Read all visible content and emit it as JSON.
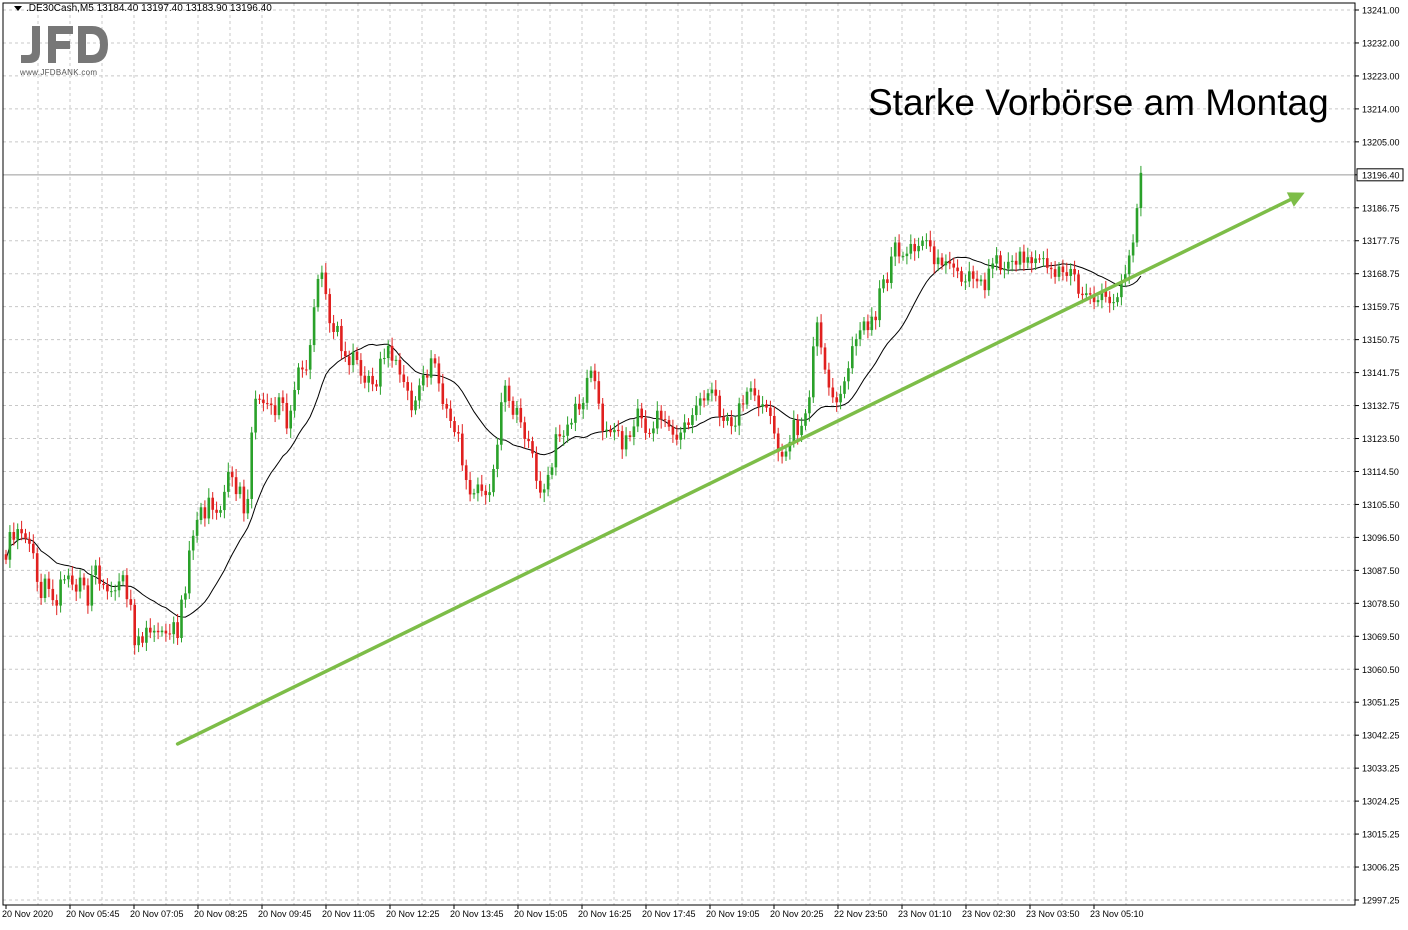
{
  "header": {
    "symbol_line": ".DE30Cash,M5  13184.40 13197.40 13183.90 13196.40"
  },
  "logo": {
    "text": "JFD",
    "subtext": "www.JFDBANK.com"
  },
  "annotation": "Starke Vorbörse am Montag",
  "colors": {
    "bull": "#2aa12a",
    "bear": "#e0201f",
    "grid": "#c8c8c8",
    "trend": "#7dbd48",
    "ma": "#000000"
  },
  "chart_data": {
    "type": "candlestick",
    "symbol": ".DE30Cash",
    "timeframe": "M5",
    "last_price": "13196.40",
    "y_ticks": [
      "13241.00",
      "13232.00",
      "13223.00",
      "13214.00",
      "13205.00",
      "13196.40",
      "13186.75",
      "13177.75",
      "13168.75",
      "13159.75",
      "13150.75",
      "13141.75",
      "13132.75",
      "13123.50",
      "13114.50",
      "13105.50",
      "13096.50",
      "13087.50",
      "13078.50",
      "13069.50",
      "13060.50",
      "13051.25",
      "13042.25",
      "13033.25",
      "13024.25",
      "13015.25",
      "13006.25",
      "12997.25"
    ],
    "x_ticks": [
      "20 Nov 2020",
      "20 Nov 05:45",
      "20 Nov 07:05",
      "20 Nov 08:25",
      "20 Nov 09:45",
      "20 Nov 11:05",
      "20 Nov 12:25",
      "20 Nov 13:45",
      "20 Nov 15:05",
      "20 Nov 16:25",
      "20 Nov 17:45",
      "20 Nov 19:05",
      "20 Nov 20:25",
      "22 Nov 23:50",
      "23 Nov 01:10",
      "23 Nov 02:30",
      "23 Nov 03:50",
      "23 Nov 05:10"
    ],
    "ylim": [
      12997.25,
      13241.0
    ],
    "grid": true,
    "trendline": {
      "from_bar": 44,
      "from_price": 13040,
      "to_bar": 333,
      "to_price": 13191
    },
    "ma_period": 20,
    "closes": [
      13090.44,
      13098.03,
      13095.92,
      13098.84,
      13097.68,
      13096.19,
      13094.81,
      13092.23,
      13084.38,
      13079.96,
      13085.27,
      13082.44,
      13079.38,
      13077.88,
      13085.02,
      13085.09,
      13086.11,
      13083.64,
      13081.73,
      13085.54,
      13083.42,
      13077.88,
      13086.24,
      13088.86,
      13083.86,
      13083.51,
      13081.78,
      13081.84,
      13082.07,
      13084.51,
      13086.22,
      13079.64,
      13078.08,
      13067.04,
      13069.44,
      13067.7,
      13071.82,
      13070.52,
      13070.98,
      13070.59,
      13071.02,
      13070.25,
      13070.05,
      13073.34,
      13069.0,
      13079.52,
      13081.23,
      13092.98,
      13096.99,
      13101.33,
      13104.81,
      13101.75,
      13107.43,
      13104.12,
      13103.29,
      13104.04,
      13109.03,
      13114.46,
      13113.05,
      13108.42,
      13110.47,
      13103.14,
      13107.09,
      13125.28,
      13134.53,
      13134.28,
      13133.33,
      13133.22,
      13132.76,
      13130.05,
      13134.92,
      13133.37,
      13126.4,
      13131.26,
      13136.93,
      13143.09,
      13142.55,
      13142.5,
      13149.23,
      13159.59,
      13167.34,
      13169.09,
      13163.2,
      13155.23,
      13152.82,
      13154.47,
      13147.58,
      13146.15,
      13143.74,
      13147.4,
      13145.13,
      13140.85,
      13138.93,
      13140.78,
      13138.5,
      13137.87,
      13145.5,
      13145.68,
      13149.01,
      13144.94,
      13145.18,
      13141.17,
      13139.11,
      13136.74,
      13131.38,
      13134.06,
      13138.19,
      13140.98,
      13140.31,
      13145.6,
      13144.21,
      13138.73,
      13133.08,
      13131.83,
      13128.44,
      13125.4,
      13124.99,
      13116.3,
      13112.28,
      13108.33,
      13108.67,
      13111.06,
      13109.31,
      13108.15,
      13108.95,
      13115.29,
      13121.94,
      13133.58,
      13138.11,
      13133.94,
      13130.13,
      13132.01,
      13128.08,
      13123.52,
      13122.93,
      13119.56,
      13112.06,
      13108.83,
      13109.72,
      13113.68,
      13115.74,
      13124.82,
      13124.24,
      13124.38,
      13127.45,
      13127.93,
      13133.16,
      13131.63,
      13133.41,
      13140.24,
      13142.24,
      13139.35,
      13133.19,
      13125.73,
      13126.06,
      13125.36,
      13126.01,
      13125.67,
      13120.66,
      13124.51,
      13124.06,
      13126.95,
      13131.84,
      13129.16,
      13125.17,
      13125.07,
      13126.4,
      13131.25,
      13128.95,
      13128.68,
      13126.89,
      13124.69,
      13123.31,
      13125.28,
      13128.04,
      13127.34,
      13130.06,
      13132.68,
      13134.64,
      13134.06,
      13136.04,
      13137.04,
      13135.35,
      13129.6,
      13128.45,
      13129.48,
      13127.03,
      13127.17,
      13133.27,
      13132.95,
      13136.46,
      13137.41,
      13135.43,
      13132.34,
      13133.02,
      13132.1,
      13129.82,
      13125.02,
      13119.98,
      13118.69,
      13120.1,
      13122.71,
      13128.73,
      13124.58,
      13127.12,
      13130.54,
      13134.93,
      13148.88,
      13155.45,
      13148.58,
      13142.5,
      13137.61,
      13134.93,
      13133.54,
      13135.87,
      13139.31,
      13142.89,
      13148.94,
      13150.83,
      13153.27,
      13155.71,
      13153.33,
      13157.0,
      13156.06,
      13164.76,
      13167.24,
      13166.24,
      13173.48,
      13177.33,
      13173.51,
      13173.6,
      13174.27,
      13176.93,
      13174.93,
      13176.38,
      13177.82,
      13177.95,
      13176.26,
      13171.39,
      13173.2,
      13171.08,
      13172.16,
      13171.56,
      13170.45,
      13169.47,
      13166.57,
      13166.66,
      13169.43,
      13167.39,
      13166.69,
      13167.18,
      13164.27,
      13170.17,
      13171.56,
      13173.82,
      13169.76,
      13170.16,
      13172.04,
      13172.3,
      13171.26,
      13174.84,
      13171.79,
      13173.29,
      13171.69,
      13172.94,
      13172.93,
      13173.04,
      13170.4,
      13170.02,
      13167.92,
      13170.74,
      13169.19,
      13168.17,
      13170.08,
      13168.58,
      13163.29,
      13162.92,
      13163.43,
      13163.06,
      13160.99,
      13161.55,
      13164.2,
      13162.44,
      13160.7,
      13160.99,
      13162.35,
      13166.74,
      13168.63,
      13173.77,
      13177.33,
      13186.75,
      13196.4
    ],
    "ma_note": "simple moving average (20) of closes"
  }
}
